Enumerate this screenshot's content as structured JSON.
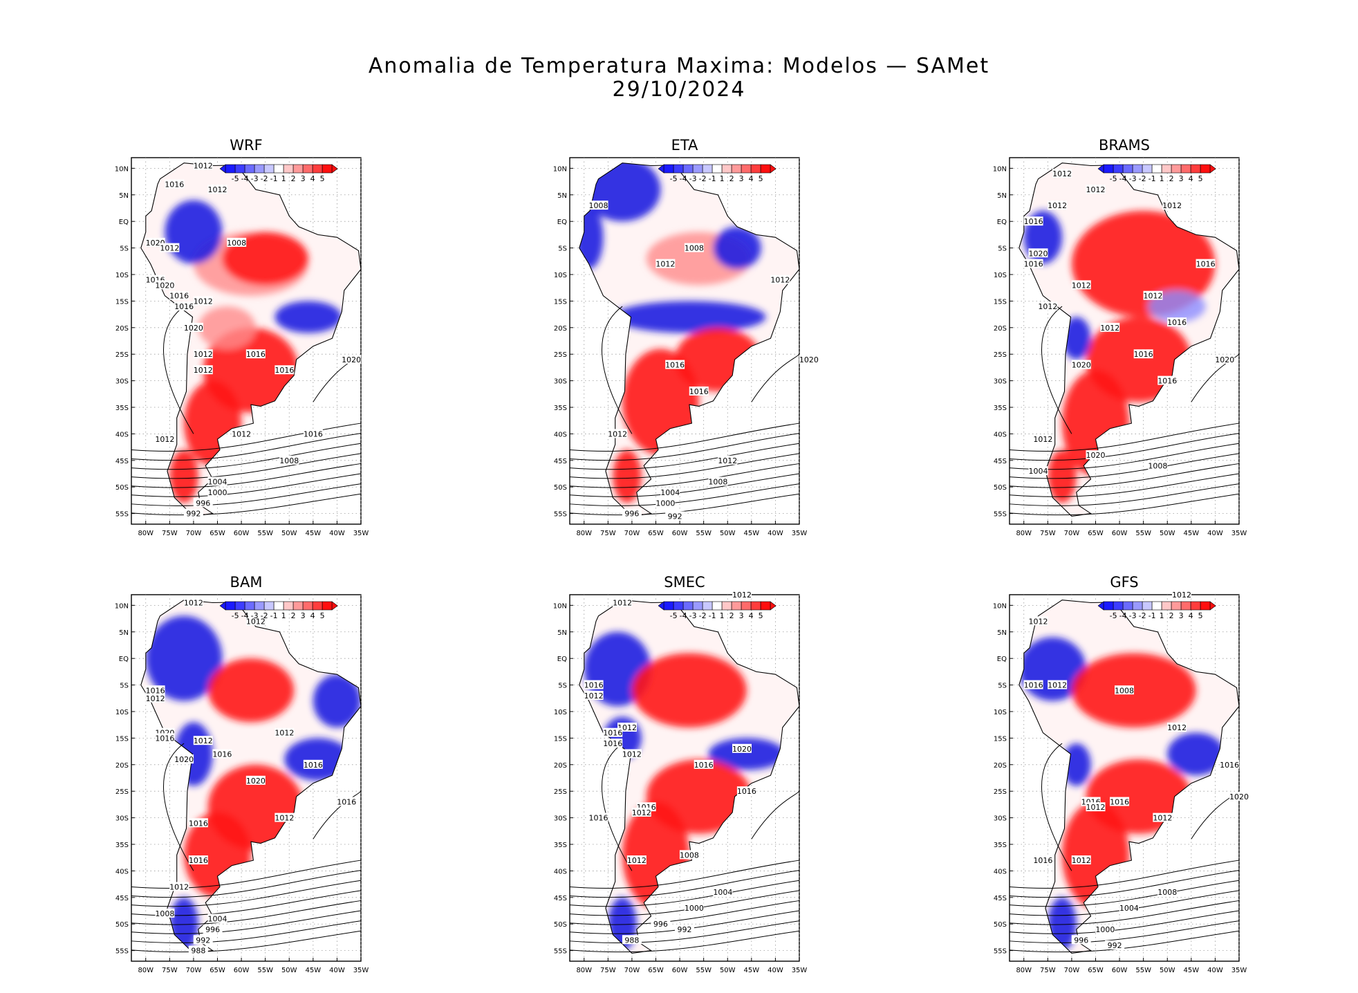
{
  "title": "Anomalia de Temperatura Maxima: Modelos — SAMet",
  "date": "29/10/2024",
  "lat_ticks": [
    "10N",
    "5N",
    "EQ",
    "5S",
    "10S",
    "15S",
    "20S",
    "25S",
    "30S",
    "35S",
    "40S",
    "45S",
    "50S",
    "55S"
  ],
  "lon_ticks": [
    "80W",
    "75W",
    "70W",
    "65W",
    "60W",
    "55W",
    "50W",
    "45W",
    "40W",
    "35W"
  ],
  "colorbar": {
    "labels": [
      "-5",
      "-4",
      "-3",
      "-2",
      "-1",
      "1",
      "2",
      "3",
      "4",
      "5"
    ],
    "colors": [
      "#1a1aff",
      "#3d3dff",
      "#6b6bff",
      "#9a9aff",
      "#c8c8ff",
      "#ffffff",
      "#ffc8c8",
      "#ff9a9a",
      "#ff6b6b",
      "#ff3d3d",
      "#ff0f0f"
    ]
  },
  "colors": {
    "warm": "#ff1a1a",
    "cool": "#2020e0",
    "land": "#fff4f4",
    "contour": "#000000"
  },
  "panels": [
    {
      "name": "WRF",
      "isobars": [
        "1012",
        "1016",
        "1012",
        "1008",
        "1020",
        "1012",
        "1016",
        "1020",
        "1016",
        "1012",
        "1016",
        "1020",
        "1012",
        "1016",
        "1012",
        "1016",
        "1020",
        "1016",
        "1012",
        "1012",
        "1008",
        "1004",
        "1000",
        "996",
        "992"
      ]
    },
    {
      "name": "ETA",
      "isobars": [
        "1008",
        "1008",
        "1012",
        "1012",
        "1016",
        "1020",
        "1012",
        "1016",
        "1012",
        "1008",
        "1004",
        "1000",
        "996",
        "992"
      ]
    },
    {
      "name": "BRAMS",
      "isobars": [
        "1012",
        "1012",
        "1012",
        "1012",
        "1016",
        "1020",
        "1016",
        "1012",
        "1012",
        "1016",
        "1012",
        "1020",
        "1016",
        "1012",
        "1016",
        "1020",
        "1016",
        "1012",
        "1020",
        "1008",
        "1004"
      ]
    },
    {
      "name": "BAM",
      "isobars": [
        "1012",
        "1012",
        "1016",
        "1012",
        "1020",
        "1016",
        "1012",
        "1020",
        "1016",
        "1012",
        "1016",
        "1020",
        "1016",
        "1012",
        "1016",
        "1016",
        "1012",
        "1008",
        "1004",
        "996",
        "992",
        "988"
      ]
    },
    {
      "name": "SMEC",
      "isobars": [
        "1012",
        "1012",
        "1016",
        "1012",
        "1012",
        "1016",
        "1016",
        "1012",
        "1016",
        "1020",
        "1016",
        "1016",
        "1012",
        "1016",
        "1012",
        "1008",
        "1004",
        "1000",
        "996",
        "992",
        "988"
      ]
    },
    {
      "name": "GFS",
      "isobars": [
        "1012",
        "1012",
        "1016",
        "1012",
        "1008",
        "1012",
        "1016",
        "1020",
        "1016",
        "1012",
        "1016",
        "1012",
        "1016",
        "1012",
        "1008",
        "1004",
        "1000",
        "996",
        "992"
      ]
    }
  ]
}
